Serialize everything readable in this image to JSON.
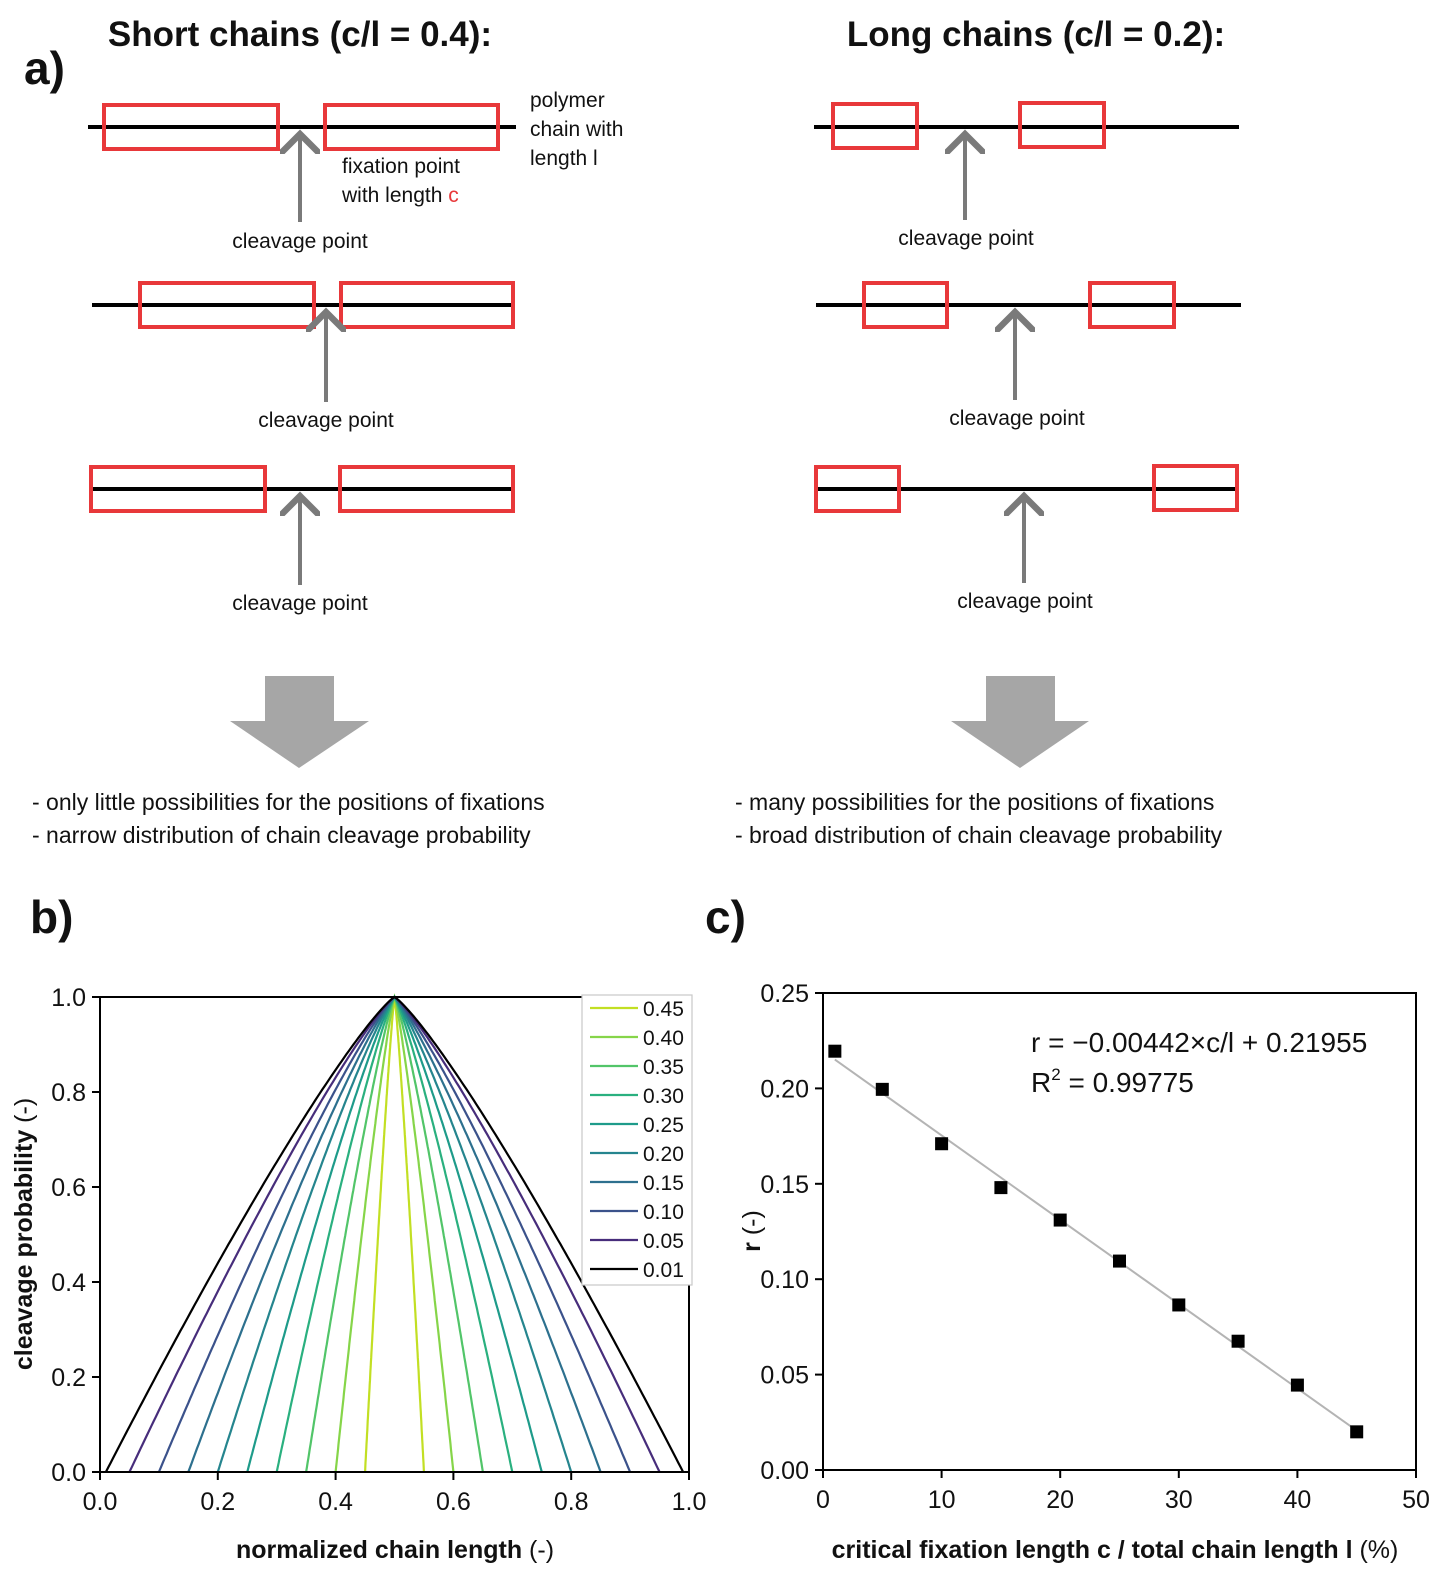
{
  "panel_a": {
    "label": "a)",
    "short": {
      "title": "Short chains (c/l = 0.4):",
      "chain_note_lines": [
        "polymer",
        "chain with",
        "length l"
      ],
      "fixation_note_prefix_1": "fixation point",
      "fixation_note_prefix_2": "with length ",
      "fixation_note_c": "c",
      "cleavage_label": "cleavage point",
      "bullets": [
        "- only little possibilities for the positions of fixations",
        "- narrow distribution of chain cleavage probability"
      ]
    },
    "long": {
      "title": "Long chains (c/l = 0.2):",
      "cleavage_label": "cleavage point",
      "bullets": [
        "- many possibilities for the positions of fixations",
        "- broad distribution of chain cleavage probability"
      ]
    },
    "colors": {
      "fixation_box": "#e8383a",
      "arrow": "#7a7a7a",
      "big_arrow": "#a6a6a6",
      "chain": "#000000"
    }
  },
  "chart_data": [
    {
      "panel": "b)",
      "type": "line",
      "xlabel_bold": "normalized chain length",
      "xlabel_unit": " (-)",
      "ylabel_bold": "cleavage probability",
      "ylabel_unit": " (-)",
      "xlim": [
        0,
        1
      ],
      "ylim": [
        0,
        1
      ],
      "xticks": [
        "0.0",
        "0.2",
        "0.4",
        "0.6",
        "0.8",
        "1.0"
      ],
      "yticks": [
        "0.0",
        "0.2",
        "0.4",
        "0.6",
        "0.8",
        "1.0"
      ],
      "legend_position": "top-right",
      "series": [
        {
          "name": "0.45",
          "color": "#c2df23",
          "start": 0.45
        },
        {
          "name": "0.40",
          "color": "#86d549",
          "start": 0.4
        },
        {
          "name": "0.35",
          "color": "#52c569",
          "start": 0.35
        },
        {
          "name": "0.30",
          "color": "#2ab07f",
          "start": 0.3
        },
        {
          "name": "0.25",
          "color": "#1e9b8a",
          "start": 0.25
        },
        {
          "name": "0.20",
          "color": "#25858e",
          "start": 0.2
        },
        {
          "name": "0.15",
          "color": "#2d708e",
          "start": 0.15
        },
        {
          "name": "0.10",
          "color": "#3b528b",
          "start": 0.1
        },
        {
          "name": "0.05",
          "color": "#472d7b",
          "start": 0.05
        },
        {
          "name": "0.01",
          "color": "#000000",
          "start": 0.01
        }
      ]
    },
    {
      "panel": "c)",
      "type": "scatter",
      "xlabel_bold": "critical fixation length c / total chain length l",
      "xlabel_unit": " (%)",
      "ylabel_bold": "r",
      "ylabel_unit": " (-)",
      "xlim": [
        0,
        50
      ],
      "ylim": [
        0,
        0.25
      ],
      "xticks": [
        "0",
        "10",
        "20",
        "30",
        "40",
        "50"
      ],
      "yticks": [
        "0.00",
        "0.05",
        "0.10",
        "0.15",
        "0.20",
        "0.25"
      ],
      "points": [
        {
          "x": 1,
          "y": 0.2195
        },
        {
          "x": 5,
          "y": 0.1995
        },
        {
          "x": 10,
          "y": 0.171
        },
        {
          "x": 15,
          "y": 0.148
        },
        {
          "x": 20,
          "y": 0.131
        },
        {
          "x": 25,
          "y": 0.1095
        },
        {
          "x": 30,
          "y": 0.0865
        },
        {
          "x": 35,
          "y": 0.0675
        },
        {
          "x": 40,
          "y": 0.0445
        },
        {
          "x": 45,
          "y": 0.02
        }
      ],
      "fit": {
        "slope": -0.00442,
        "intercept": 0.21955,
        "color": "#b4b4b4"
      },
      "equation": "r = −0.00442×c/l + 0.21955",
      "r2_prefix": "R",
      "r2_sup": "2",
      "r2_value": " = 0.99775"
    }
  ]
}
